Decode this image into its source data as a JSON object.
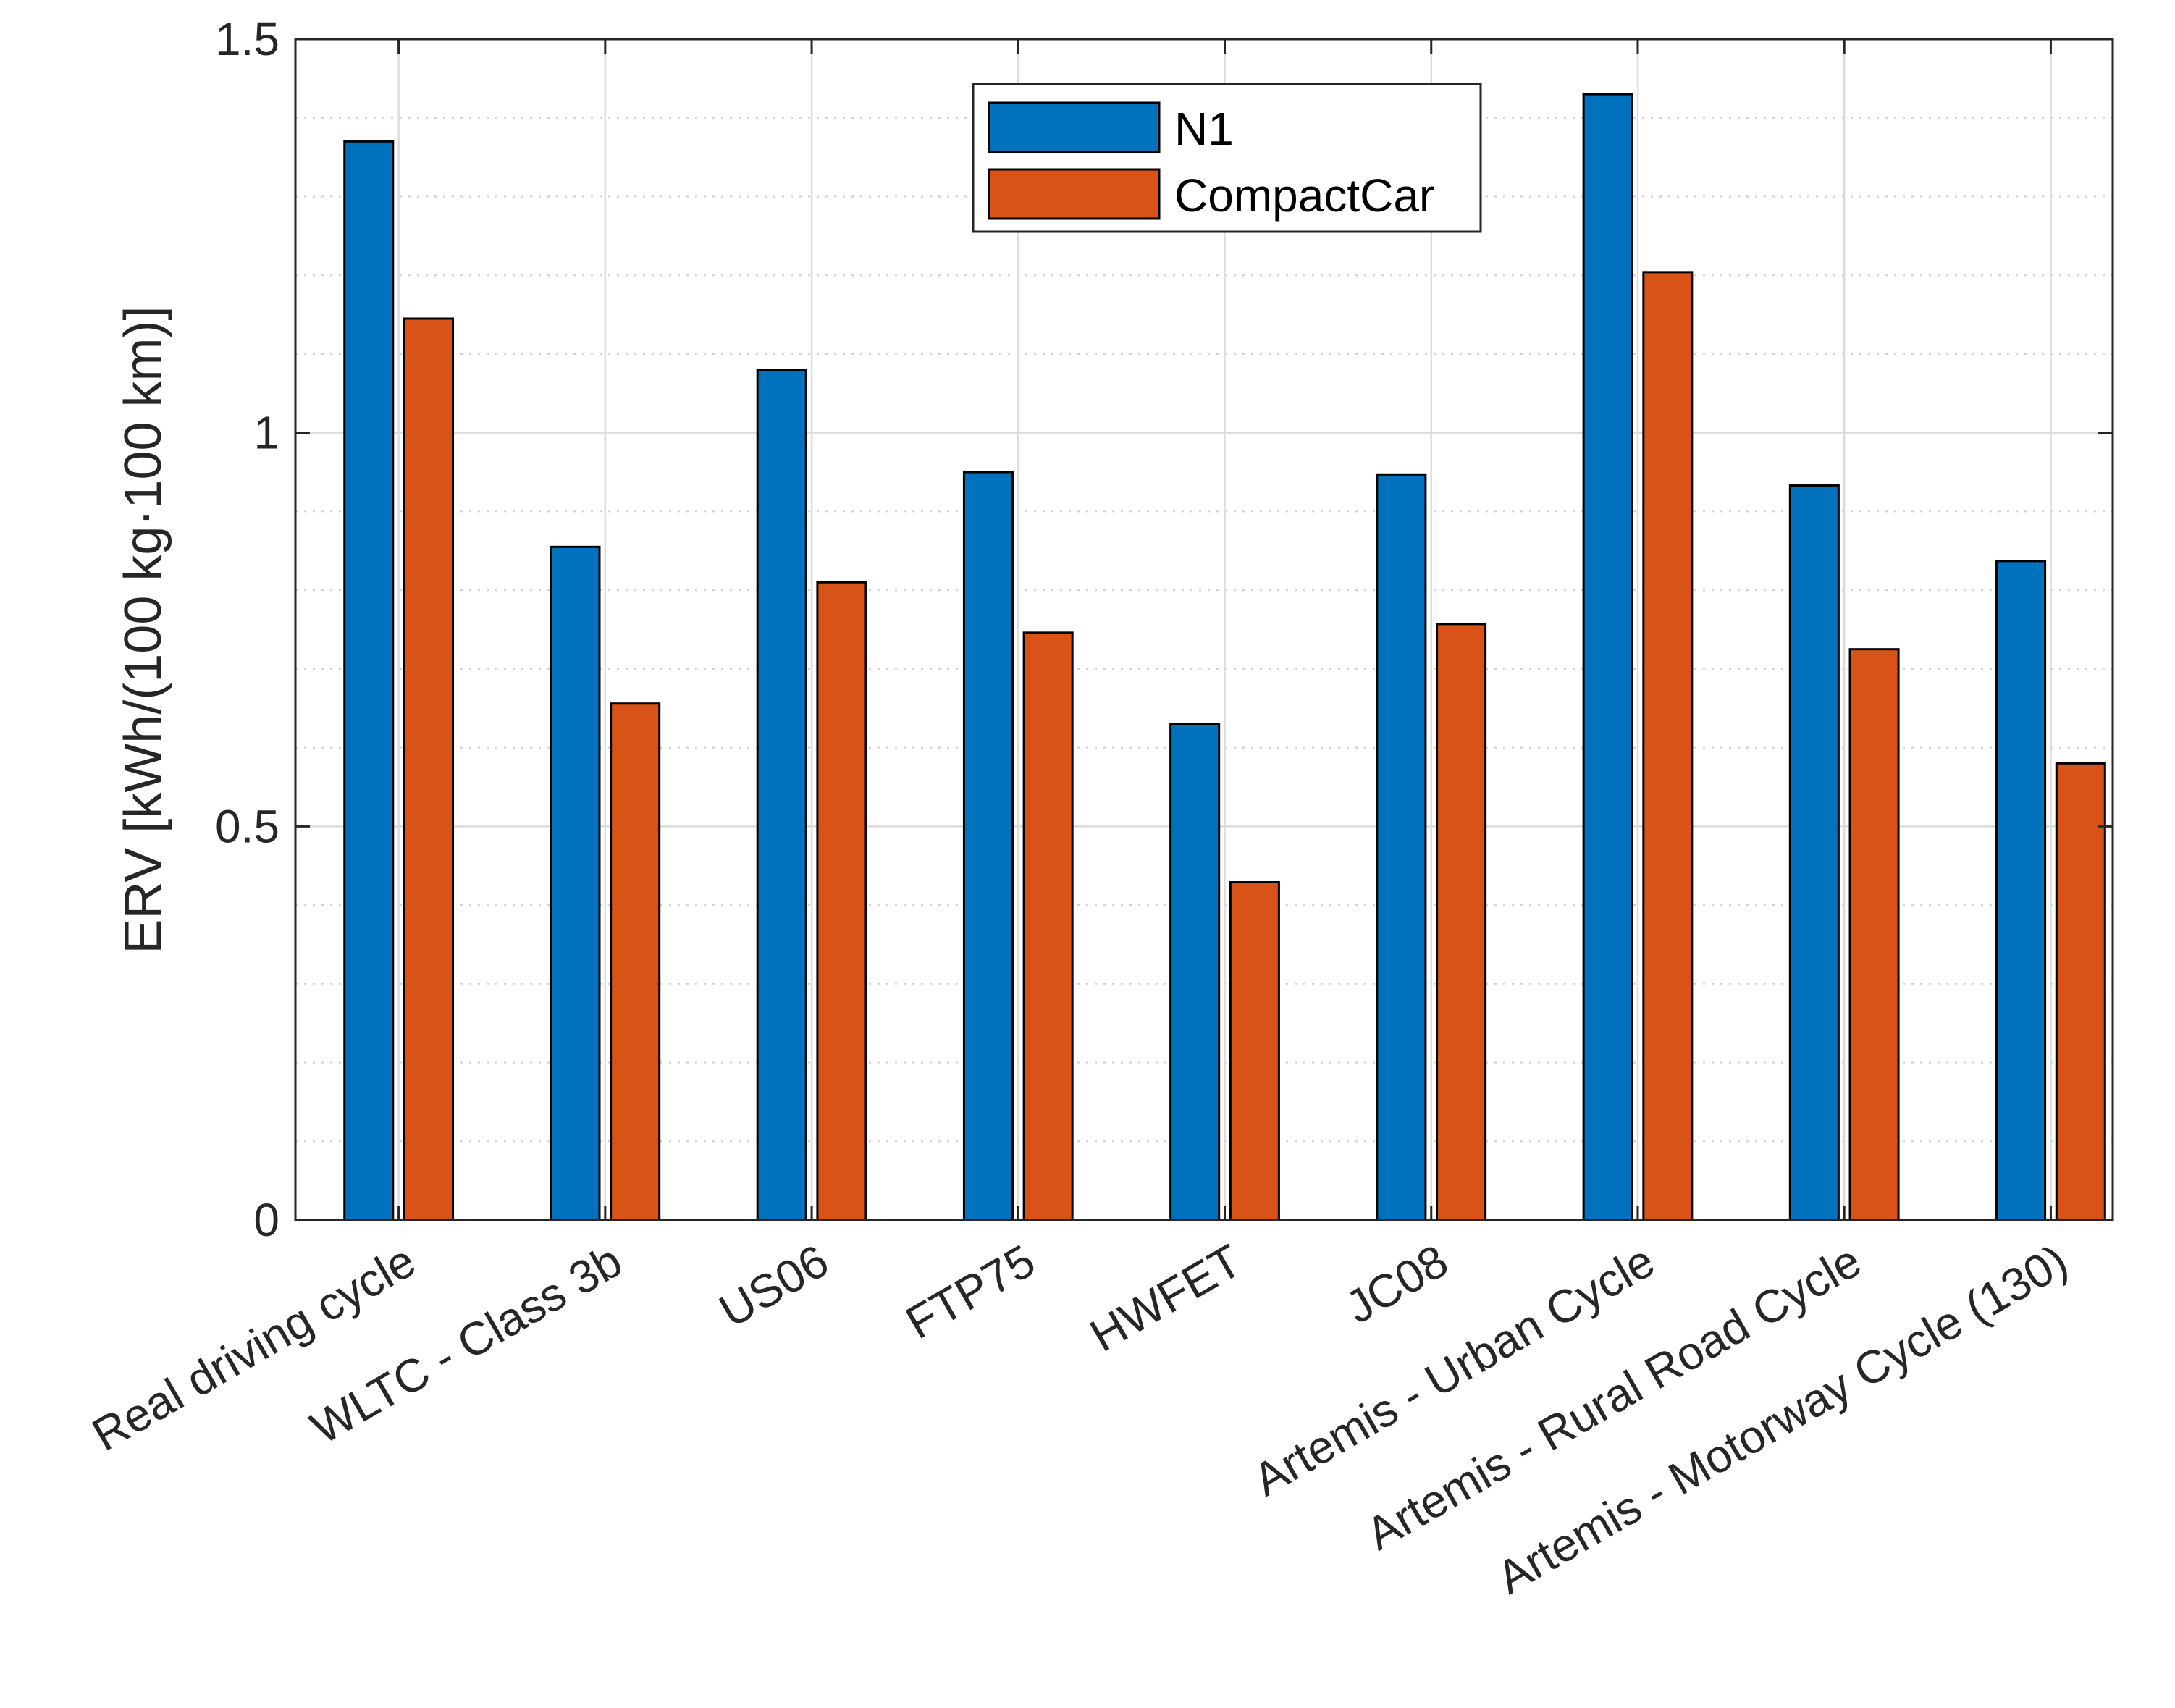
{
  "chart_data": {
    "type": "bar",
    "title": "",
    "xlabel": "",
    "ylabel": "ERV [kWh/(100 kg·100 km)]",
    "ylim": [
      0,
      1.5
    ],
    "yticks": [
      0,
      0.5,
      1,
      1.5
    ],
    "ytick_labels": [
      "0",
      "0.5",
      "1",
      "1.5"
    ],
    "grid": true,
    "minor_grid": true,
    "legend_placement": "top-center",
    "categories": [
      "Real driving cycle",
      "WLTC - Class 3b",
      "US06",
      "FTP75",
      "HWFET",
      "JC08",
      "Artemis - Urban Cycle",
      "Artemis - Rural Road Cycle",
      "Artemis - Motorway Cycle (130)"
    ],
    "series": [
      {
        "name": "N1",
        "color": "#0072BD",
        "values": [
          1.37,
          0.855,
          1.08,
          0.95,
          0.63,
          0.947,
          1.43,
          0.933,
          0.837
        ]
      },
      {
        "name": "CompactCar",
        "color": "#D95319",
        "values": [
          1.145,
          0.656,
          0.81,
          0.746,
          0.429,
          0.757,
          1.204,
          0.725,
          0.58
        ]
      }
    ]
  }
}
